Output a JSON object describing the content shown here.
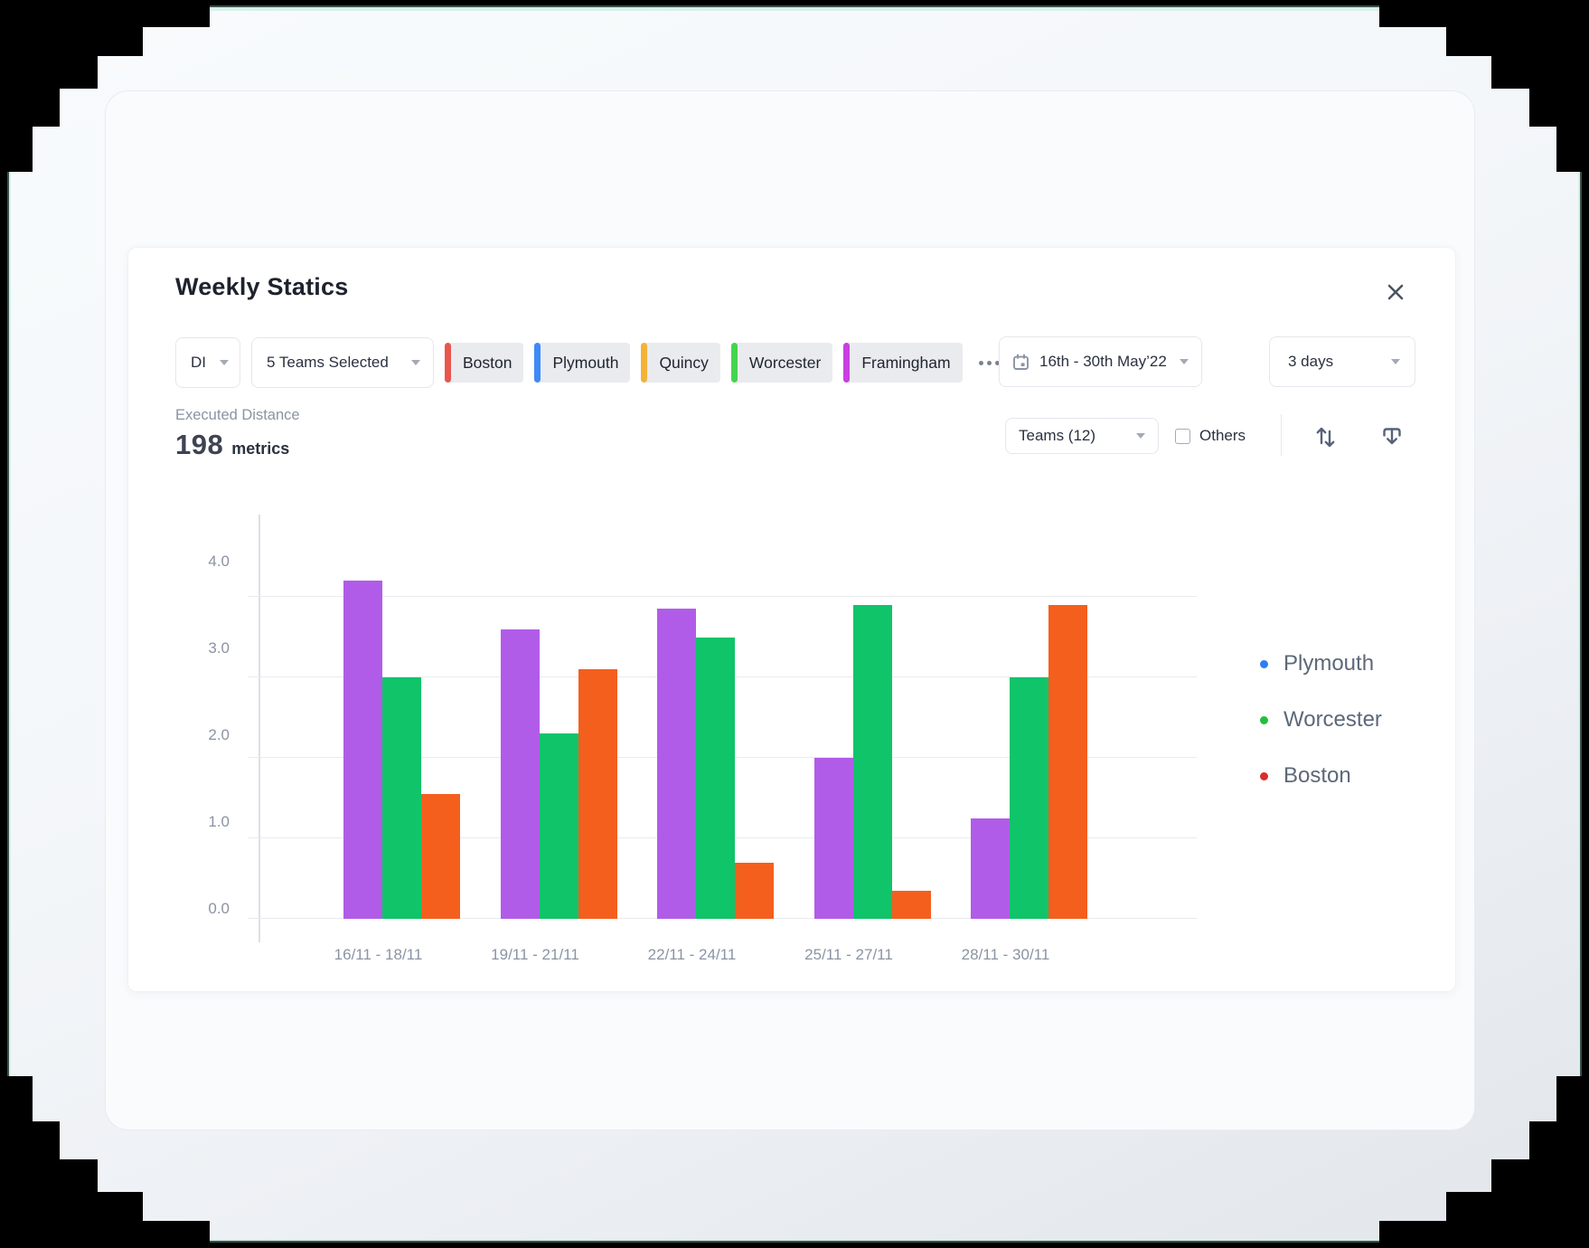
{
  "card": {
    "title": "Weekly Statics"
  },
  "filters": {
    "metric_select": {
      "value": "DI"
    },
    "teams_select": {
      "value": "5 Teams Selected"
    },
    "team_chips": [
      {
        "label": "Boston",
        "color": "#e8564d"
      },
      {
        "label": "Plymouth",
        "color": "#3d8bf8"
      },
      {
        "label": "Quincy",
        "color": "#f2b33b"
      },
      {
        "label": "Worcester",
        "color": "#45d44d"
      },
      {
        "label": "Framingham",
        "color": "#c93fe1"
      }
    ],
    "date_select": {
      "value": "16th - 30th May’22"
    },
    "range_select": {
      "value": "3 days"
    }
  },
  "metric": {
    "label": "Executed Distance",
    "value": "198",
    "unit": "metrics"
  },
  "controls": {
    "group_select": {
      "value": "Teams (12)"
    },
    "others_checkbox": {
      "label": "Others",
      "checked": false
    }
  },
  "chart_data": {
    "type": "bar",
    "title": "Weekly Statics",
    "ylabel": "Executed Distance (metrics)",
    "categories": [
      "16/11 - 18/11",
      "19/11 - 21/11",
      "22/11 - 24/11",
      "25/11 - 27/11",
      "28/11 - 30/11"
    ],
    "series": [
      {
        "name": "Plymouth",
        "bar_color": "#b15ce8",
        "legend_dot_color": "#2e7cf6",
        "values": [
          4.2,
          3.6,
          3.85,
          2.0,
          1.25
        ]
      },
      {
        "name": "Worcester",
        "bar_color": "#10c46a",
        "legend_dot_color": "#22c03e",
        "values": [
          3.0,
          2.3,
          3.5,
          3.9,
          3.0
        ]
      },
      {
        "name": "Boston",
        "bar_color": "#f45f1e",
        "legend_dot_color": "#da2c2c",
        "values": [
          1.55,
          3.1,
          0.7,
          0.35,
          3.9
        ]
      }
    ],
    "y_ticks": [
      "0.0",
      "1.0",
      "2.0",
      "3.0",
      "4.0"
    ],
    "ylim": [
      0,
      5
    ],
    "grid": true,
    "legend_position": "right"
  }
}
